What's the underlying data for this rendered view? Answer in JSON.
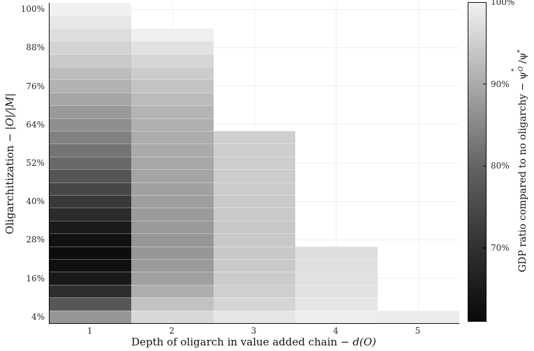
{
  "figure": {
    "background": "#ffffff",
    "grid_color": "#efefef",
    "spine_color": "#0a0a0a",
    "tick_label_color": "#262626"
  },
  "axis_labels": {
    "x_prefix": "Depth of oligarch in value added chain − ",
    "x_math": "d(O)",
    "y_prefix": "Oligarchitization − ",
    "y_math": "|O|/|M|"
  },
  "colorbar": {
    "label_prefix": "GDP ratio compared to no oligarchy − ",
    "math": {
      "psi": "ψ",
      "star": "*",
      "cal_o": "O",
      "slash": "/"
    },
    "range_pct": [
      61,
      100
    ],
    "ticks": [
      {
        "label": "100%",
        "value_pct": 100
      },
      {
        "label": "90%",
        "value_pct": 90
      },
      {
        "label": "80%",
        "value_pct": 80
      },
      {
        "label": "70%",
        "value_pct": 70
      }
    ],
    "gradient_stops": [
      {
        "value_pct": 61,
        "color": "#0a0a0a"
      },
      {
        "value_pct": 70,
        "color": "#303030"
      },
      {
        "value_pct": 80,
        "color": "#646464"
      },
      {
        "value_pct": 90,
        "color": "#aaaaaa"
      },
      {
        "value_pct": 100,
        "color": "#f2f2f2"
      }
    ]
  },
  "chart_data": {
    "type": "heatmap",
    "xlabel": "Depth of oligarch in value added chain − d(O)",
    "ylabel": "Oligarchitization − |O|/|M|",
    "colorbar_label": "GDP ratio compared to no oligarchy − ψ*O/ψ*",
    "x_ticks": [
      "1",
      "2",
      "3",
      "4",
      "5"
    ],
    "y_ticks_pct": [
      4,
      16,
      28,
      40,
      52,
      64,
      76,
      88,
      100
    ],
    "y_tick_labels": [
      "4%",
      "16%",
      "28%",
      "40%",
      "52%",
      "64%",
      "76%",
      "88%",
      "100%"
    ],
    "x_range": [
      0.5,
      5.5
    ],
    "y_range_pct": [
      2,
      102
    ],
    "cell_height_pct": 4,
    "legend_position": "right-colorbar",
    "grid": true,
    "columns": [
      {
        "depth": 1,
        "cells": [
          {
            "olig_pct": 4,
            "gdp_pct": 87.1,
            "color": "#969696"
          },
          {
            "olig_pct": 8,
            "gdp_pct": 77.5,
            "color": "#575757"
          },
          {
            "olig_pct": 12,
            "gdp_pct": 69.5,
            "color": "#2e2e2e"
          },
          {
            "olig_pct": 16,
            "gdp_pct": 64.6,
            "color": "#191919"
          },
          {
            "olig_pct": 20,
            "gdp_pct": 62.2,
            "color": "#0f0f0f"
          },
          {
            "olig_pct": 24,
            "gdp_pct": 61.7,
            "color": "#0d0d0d"
          },
          {
            "olig_pct": 28,
            "gdp_pct": 62.7,
            "color": "#111111"
          },
          {
            "olig_pct": 32,
            "gdp_pct": 65.0,
            "color": "#1b1b1b"
          },
          {
            "olig_pct": 36,
            "gdp_pct": 68.8,
            "color": "#2b2b2b"
          },
          {
            "olig_pct": 40,
            "gdp_pct": 71.5,
            "color": "#383838"
          },
          {
            "olig_pct": 44,
            "gdp_pct": 74.4,
            "color": "#474747"
          },
          {
            "olig_pct": 48,
            "gdp_pct": 77.1,
            "color": "#555555"
          },
          {
            "olig_pct": 52,
            "gdp_pct": 80.6,
            "color": "#686868"
          },
          {
            "olig_pct": 56,
            "gdp_pct": 82.3,
            "color": "#747474"
          },
          {
            "olig_pct": 60,
            "gdp_pct": 84.1,
            "color": "#818181"
          },
          {
            "olig_pct": 64,
            "gdp_pct": 86.0,
            "color": "#8e8e8e"
          },
          {
            "olig_pct": 68,
            "gdp_pct": 87.7,
            "color": "#9a9a9a"
          },
          {
            "olig_pct": 72,
            "gdp_pct": 89.4,
            "color": "#a6a6a6"
          },
          {
            "olig_pct": 76,
            "gdp_pct": 91.1,
            "color": "#b2b2b2"
          },
          {
            "olig_pct": 80,
            "gdp_pct": 92.7,
            "color": "#bdbdbd"
          },
          {
            "olig_pct": 84,
            "gdp_pct": 94.3,
            "color": "#c9c9c9"
          },
          {
            "olig_pct": 88,
            "gdp_pct": 95.7,
            "color": "#d3d3d3"
          },
          {
            "olig_pct": 92,
            "gdp_pct": 97.1,
            "color": "#dddddd"
          },
          {
            "olig_pct": 96,
            "gdp_pct": 98.5,
            "color": "#e7e7e7"
          },
          {
            "olig_pct": 100,
            "gdp_pct": 99.9,
            "color": "#f1f1f1"
          }
        ]
      },
      {
        "depth": 2,
        "cells": [
          {
            "olig_pct": 4,
            "gdp_pct": 96.4,
            "color": "#d8d8d8"
          },
          {
            "olig_pct": 8,
            "gdp_pct": 93.4,
            "color": "#c2c2c2"
          },
          {
            "olig_pct": 12,
            "gdp_pct": 90.4,
            "color": "#adadad"
          },
          {
            "olig_pct": 16,
            "gdp_pct": 88.6,
            "color": "#a0a0a0"
          },
          {
            "olig_pct": 20,
            "gdp_pct": 87.7,
            "color": "#9a9a9a"
          },
          {
            "olig_pct": 24,
            "gdp_pct": 87.3,
            "color": "#979797"
          },
          {
            "olig_pct": 28,
            "gdp_pct": 87.1,
            "color": "#969696"
          },
          {
            "olig_pct": 32,
            "gdp_pct": 87.6,
            "color": "#999999"
          },
          {
            "olig_pct": 36,
            "gdp_pct": 87.9,
            "color": "#9b9b9b"
          },
          {
            "olig_pct": 40,
            "gdp_pct": 88.3,
            "color": "#9e9e9e"
          },
          {
            "olig_pct": 44,
            "gdp_pct": 88.7,
            "color": "#a1a1a1"
          },
          {
            "olig_pct": 48,
            "gdp_pct": 89.1,
            "color": "#a4a4a4"
          },
          {
            "olig_pct": 52,
            "gdp_pct": 89.6,
            "color": "#a7a7a7"
          },
          {
            "olig_pct": 56,
            "gdp_pct": 90.0,
            "color": "#aaaaaa"
          },
          {
            "olig_pct": 60,
            "gdp_pct": 90.4,
            "color": "#adadad"
          },
          {
            "olig_pct": 64,
            "gdp_pct": 90.8,
            "color": "#b0b0b0"
          },
          {
            "olig_pct": 68,
            "gdp_pct": 91.4,
            "color": "#b4b4b4"
          },
          {
            "olig_pct": 72,
            "gdp_pct": 92.4,
            "color": "#bbbbbb"
          },
          {
            "olig_pct": 76,
            "gdp_pct": 93.5,
            "color": "#c3c3c3"
          },
          {
            "olig_pct": 80,
            "gdp_pct": 94.7,
            "color": "#cccccc"
          },
          {
            "olig_pct": 84,
            "gdp_pct": 96.1,
            "color": "#d6d6d6"
          },
          {
            "olig_pct": 88,
            "gdp_pct": 97.8,
            "color": "#e2e2e2"
          },
          {
            "olig_pct": 92,
            "gdp_pct": 99.6,
            "color": "#efefef"
          }
        ]
      },
      {
        "depth": 3,
        "cells": [
          {
            "olig_pct": 4,
            "gdp_pct": 98.2,
            "color": "#e5e5e5"
          },
          {
            "olig_pct": 8,
            "gdp_pct": 96.0,
            "color": "#d5d5d5"
          },
          {
            "olig_pct": 12,
            "gdp_pct": 95.2,
            "color": "#cfcfcf"
          },
          {
            "olig_pct": 16,
            "gdp_pct": 94.7,
            "color": "#cccccc"
          },
          {
            "olig_pct": 20,
            "gdp_pct": 94.5,
            "color": "#cacaca"
          },
          {
            "olig_pct": 24,
            "gdp_pct": 94.3,
            "color": "#c9c9c9"
          },
          {
            "olig_pct": 28,
            "gdp_pct": 94.2,
            "color": "#c8c8c8"
          },
          {
            "olig_pct": 32,
            "gdp_pct": 94.2,
            "color": "#c8c8c8"
          },
          {
            "olig_pct": 36,
            "gdp_pct": 94.3,
            "color": "#c9c9c9"
          },
          {
            "olig_pct": 40,
            "gdp_pct": 94.5,
            "color": "#cacaca"
          },
          {
            "olig_pct": 44,
            "gdp_pct": 94.6,
            "color": "#cbcbcb"
          },
          {
            "olig_pct": 48,
            "gdp_pct": 94.7,
            "color": "#cccccc"
          },
          {
            "olig_pct": 52,
            "gdp_pct": 94.9,
            "color": "#cdcdcd"
          },
          {
            "olig_pct": 56,
            "gdp_pct": 95.0,
            "color": "#cecece"
          },
          {
            "olig_pct": 60,
            "gdp_pct": 95.3,
            "color": "#d0d0d0"
          }
        ]
      },
      {
        "depth": 4,
        "cells": [
          {
            "olig_pct": 4,
            "gdp_pct": 99.4,
            "color": "#eeeeee"
          },
          {
            "olig_pct": 8,
            "gdp_pct": 98.2,
            "color": "#e5e5e5"
          },
          {
            "olig_pct": 12,
            "gdp_pct": 97.8,
            "color": "#e2e2e2"
          },
          {
            "olig_pct": 16,
            "gdp_pct": 97.6,
            "color": "#e1e1e1"
          },
          {
            "olig_pct": 20,
            "gdp_pct": 97.4,
            "color": "#dfdfdf"
          },
          {
            "olig_pct": 24,
            "gdp_pct": 97.2,
            "color": "#dedede"
          }
        ]
      },
      {
        "depth": 5,
        "cells": [
          {
            "olig_pct": 4,
            "gdp_pct": 99.2,
            "color": "#ececec"
          }
        ]
      }
    ]
  }
}
